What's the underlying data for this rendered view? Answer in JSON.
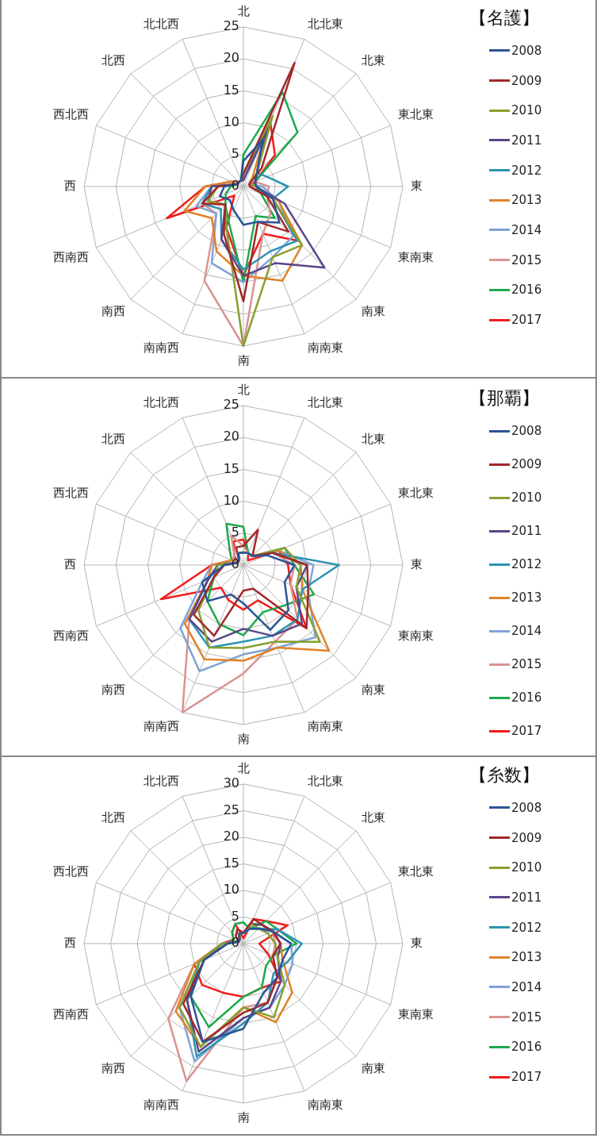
{
  "chart_data": [
    {
      "type": "radar",
      "title": "【名護】",
      "legend": "right",
      "marker": "none",
      "line_style": "solid",
      "grid": true,
      "ylim": [
        0,
        25
      ],
      "yticks": [
        0,
        5,
        10,
        15,
        20,
        25
      ],
      "categories": [
        "北",
        "北北東",
        "北東",
        "東北東",
        "東",
        "東南東",
        "南東",
        "南南東",
        "南",
        "南南西",
        "南西",
        "西南西",
        "西",
        "西北西",
        "北西",
        "北北西"
      ],
      "series": [
        {
          "name": "2008",
          "color": "#2a5597",
          "values": [
            4,
            8,
            3,
            2,
            2,
            5,
            8,
            6,
            6,
            4,
            3,
            4,
            3,
            1,
            1,
            1
          ]
        },
        {
          "name": "2009",
          "color": "#a0282a",
          "values": [
            2,
            21,
            4,
            1,
            1,
            4,
            10,
            6,
            18,
            8,
            4,
            7,
            4,
            1,
            1,
            1
          ]
        },
        {
          "name": "2010",
          "color": "#88a030",
          "values": [
            2,
            12,
            3,
            1,
            2,
            5,
            13,
            12,
            25,
            7,
            4,
            6,
            4,
            1,
            1,
            1
          ]
        },
        {
          "name": "2011",
          "color": "#5a4589",
          "values": [
            1,
            10,
            3,
            2,
            2,
            7,
            18,
            13,
            14,
            9,
            4,
            6,
            5,
            1,
            1,
            1
          ]
        },
        {
          "name": "2012",
          "color": "#2d94b0",
          "values": [
            1,
            8,
            3,
            4,
            7,
            5,
            12,
            11,
            13,
            9,
            5,
            7,
            5,
            1,
            1,
            1
          ]
        },
        {
          "name": "2013",
          "color": "#e0822a",
          "values": [
            1,
            9,
            2,
            1,
            2,
            6,
            13,
            16,
            14,
            11,
            7,
            10,
            6,
            2,
            1,
            1
          ]
        },
        {
          "name": "2014",
          "color": "#7fa3d6",
          "values": [
            1,
            9,
            3,
            1,
            3,
            6,
            11,
            12,
            15,
            13,
            6,
            8,
            5,
            1,
            1,
            1
          ]
        },
        {
          "name": "2015",
          "color": "#d99391",
          "values": [
            2,
            10,
            3,
            2,
            4,
            4,
            6,
            8,
            25,
            16,
            6,
            7,
            4,
            1,
            1,
            1
          ]
        },
        {
          "name": "2016",
          "color": "#1ca94a",
          "values": [
            5,
            16,
            12,
            2,
            2,
            3,
            7,
            5,
            15,
            6,
            4,
            3,
            2,
            1,
            1,
            1
          ]
        },
        {
          "name": "2017",
          "color": "#f21c1c",
          "values": [
            2,
            11,
            7,
            2,
            1,
            5,
            12,
            8,
            14,
            7,
            2,
            13,
            6,
            2,
            1,
            1
          ]
        }
      ]
    },
    {
      "type": "radar",
      "title": "【那覇】",
      "legend": "right",
      "marker": "none",
      "line_style": "solid",
      "grid": true,
      "ylim": [
        0,
        25
      ],
      "yticks": [
        0,
        5,
        10,
        15,
        20,
        25
      ],
      "categories": [
        "北",
        "北北東",
        "北東",
        "東北東",
        "東",
        "東南東",
        "南東",
        "南南東",
        "南",
        "南南西",
        "南西",
        "西南西",
        "西",
        "西北西",
        "北西",
        "北北西"
      ],
      "series": [
        {
          "name": "2008",
          "color": "#2a5597",
          "values": [
            2,
            2,
            2,
            4,
            8,
            7,
            10,
            11,
            6,
            5,
            8,
            7,
            3,
            1,
            1,
            2
          ]
        },
        {
          "name": "2009",
          "color": "#a0282a",
          "values": [
            3,
            6,
            2,
            5,
            10,
            11,
            14,
            4,
            4,
            12,
            11,
            5,
            3,
            1,
            1,
            3
          ]
        },
        {
          "name": "2010",
          "color": "#88a030",
          "values": [
            2,
            2,
            2,
            7,
            9,
            9,
            17,
            13,
            13,
            14,
            10,
            5,
            4,
            1,
            1,
            2
          ]
        },
        {
          "name": "2011",
          "color": "#5a4589",
          "values": [
            2,
            2,
            2,
            5,
            10,
            9,
            13,
            12,
            10,
            13,
            12,
            6,
            4,
            1,
            1,
            2
          ]
        },
        {
          "name": "2012",
          "color": "#2d94b0",
          "values": [
            2,
            2,
            2,
            5,
            15,
            10,
            12,
            12,
            12,
            14,
            12,
            6,
            4,
            1,
            1,
            2
          ]
        },
        {
          "name": "2013",
          "color": "#e0822a",
          "values": [
            2,
            2,
            2,
            6,
            9,
            10,
            19,
            14,
            15,
            16,
            13,
            6,
            5,
            2,
            1,
            2
          ]
        },
        {
          "name": "2014",
          "color": "#7fa3d6",
          "values": [
            2,
            2,
            2,
            6,
            11,
            11,
            16,
            14,
            14,
            18,
            14,
            7,
            5,
            1,
            1,
            2
          ]
        },
        {
          "name": "2015",
          "color": "#d99391",
          "values": [
            3,
            2,
            2,
            5,
            8,
            8,
            12,
            13,
            17,
            25,
            12,
            6,
            5,
            2,
            2,
            5
          ]
        },
        {
          "name": "2016",
          "color": "#1ca94a",
          "values": [
            6,
            2,
            2,
            7,
            8,
            12,
            9,
            8,
            11,
            10,
            8,
            5,
            4,
            2,
            3,
            7
          ]
        },
        {
          "name": "2017",
          "color": "#f21c1c",
          "values": [
            4,
            2,
            1,
            6,
            7,
            8,
            14,
            6,
            7,
            6,
            5,
            14,
            5,
            1,
            2,
            4
          ]
        }
      ]
    },
    {
      "type": "radar",
      "title": "【糸数】",
      "legend": "right",
      "marker": "none",
      "line_style": "solid",
      "grid": true,
      "ylim": [
        0,
        30
      ],
      "yticks": [
        0,
        5,
        10,
        15,
        20,
        25,
        30
      ],
      "categories": [
        "北",
        "北北東",
        "北東",
        "東北東",
        "東",
        "東南東",
        "南東",
        "南南東",
        "南",
        "南南西",
        "南西",
        "西南西",
        "西",
        "西北西",
        "北西",
        "北北西"
      ],
      "series": [
        {
          "name": "2008",
          "color": "#2a5597",
          "values": [
            2,
            3,
            4,
            6,
            9,
            8,
            9,
            10,
            16,
            20,
            14,
            8,
            3,
            1,
            1,
            2
          ]
        },
        {
          "name": "2009",
          "color": "#a0282a",
          "values": [
            2,
            5,
            5,
            6,
            7,
            6,
            9,
            12,
            13,
            20,
            16,
            8,
            3,
            1,
            2,
            3
          ]
        },
        {
          "name": "2010",
          "color": "#88a030",
          "values": [
            2,
            4,
            4,
            5,
            6,
            7,
            11,
            15,
            12,
            21,
            17,
            9,
            4,
            1,
            1,
            2
          ]
        },
        {
          "name": "2011",
          "color": "#5a4589",
          "values": [
            2,
            4,
            5,
            6,
            7,
            7,
            10,
            13,
            14,
            22,
            15,
            8,
            4,
            1,
            1,
            2
          ]
        },
        {
          "name": "2012",
          "color": "#2d94b0",
          "values": [
            2,
            3,
            4,
            7,
            11,
            9,
            8,
            12,
            15,
            23,
            15,
            9,
            4,
            1,
            1,
            2
          ]
        },
        {
          "name": "2013",
          "color": "#e0822a",
          "values": [
            2,
            4,
            5,
            6,
            7,
            8,
            13,
            16,
            12,
            21,
            18,
            10,
            4,
            1,
            1,
            2
          ]
        },
        {
          "name": "2014",
          "color": "#7fa3d6",
          "values": [
            2,
            4,
            4,
            6,
            9,
            10,
            11,
            13,
            14,
            24,
            17,
            9,
            4,
            1,
            1,
            2
          ]
        },
        {
          "name": "2015",
          "color": "#d99391",
          "values": [
            2,
            3,
            4,
            6,
            6,
            6,
            9,
            12,
            12,
            28,
            20,
            10,
            4,
            1,
            1,
            3
          ]
        },
        {
          "name": "2016",
          "color": "#1ca94a",
          "values": [
            4,
            3,
            6,
            7,
            10,
            6,
            6,
            9,
            10,
            17,
            14,
            9,
            3,
            2,
            3,
            4
          ]
        },
        {
          "name": "2017",
          "color": "#f21c1c",
          "values": [
            1,
            5,
            6,
            9,
            3,
            5,
            10,
            9,
            10,
            10,
            11,
            10,
            4,
            2,
            3,
            4
          ]
        }
      ]
    }
  ]
}
